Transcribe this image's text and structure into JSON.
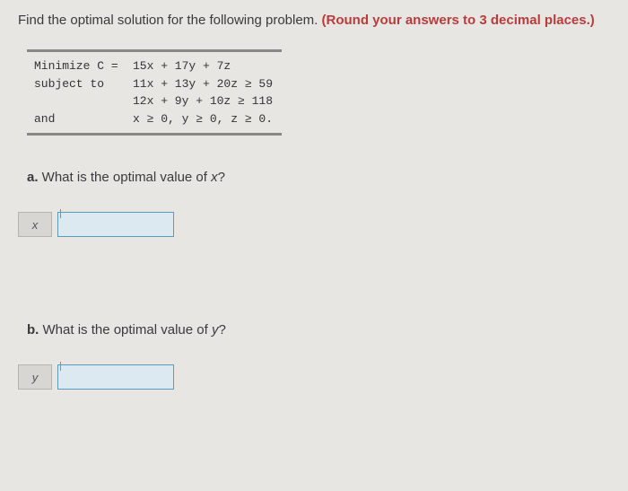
{
  "prompt": {
    "main": "Find the optimal solution for the following problem. ",
    "boldRed": "(Round your answers to 3 decimal places.)"
  },
  "problem": {
    "rows": [
      {
        "label": "Minimize C =",
        "eq": "15x + 17y + 7z"
      },
      {
        "label": "subject to",
        "eq": "11x + 13y + 20z ≥ 59"
      },
      {
        "label": "",
        "eq": "12x + 9y + 10z ≥ 118"
      },
      {
        "label": "and",
        "eq": "x ≥ 0, y ≥ 0, z ≥ 0."
      }
    ],
    "font_family": "Courier New",
    "font_size": 13,
    "border_color": "#888"
  },
  "parts": {
    "a": {
      "letter": "a.",
      "text": " What is the optimal value of ",
      "var": "x",
      "qmark": "?"
    },
    "b": {
      "letter": "b.",
      "text": " What is the optimal value of ",
      "var": "y",
      "qmark": "?"
    }
  },
  "answerBoxes": {
    "a": {
      "varLabel": "x"
    },
    "b": {
      "varLabel": "y"
    }
  },
  "styling": {
    "background_color": "#e8e6e3",
    "text_color": "#3a3a3a",
    "bold_red_color": "#b83c3c",
    "input_border_color": "#5a9bbf",
    "input_bg_color": "#dce9f0",
    "varbox_bg_color": "#d8d6d3",
    "varbox_border_color": "#b5b3b0",
    "prompt_fontsize": 15,
    "question_fontsize": 15
  }
}
